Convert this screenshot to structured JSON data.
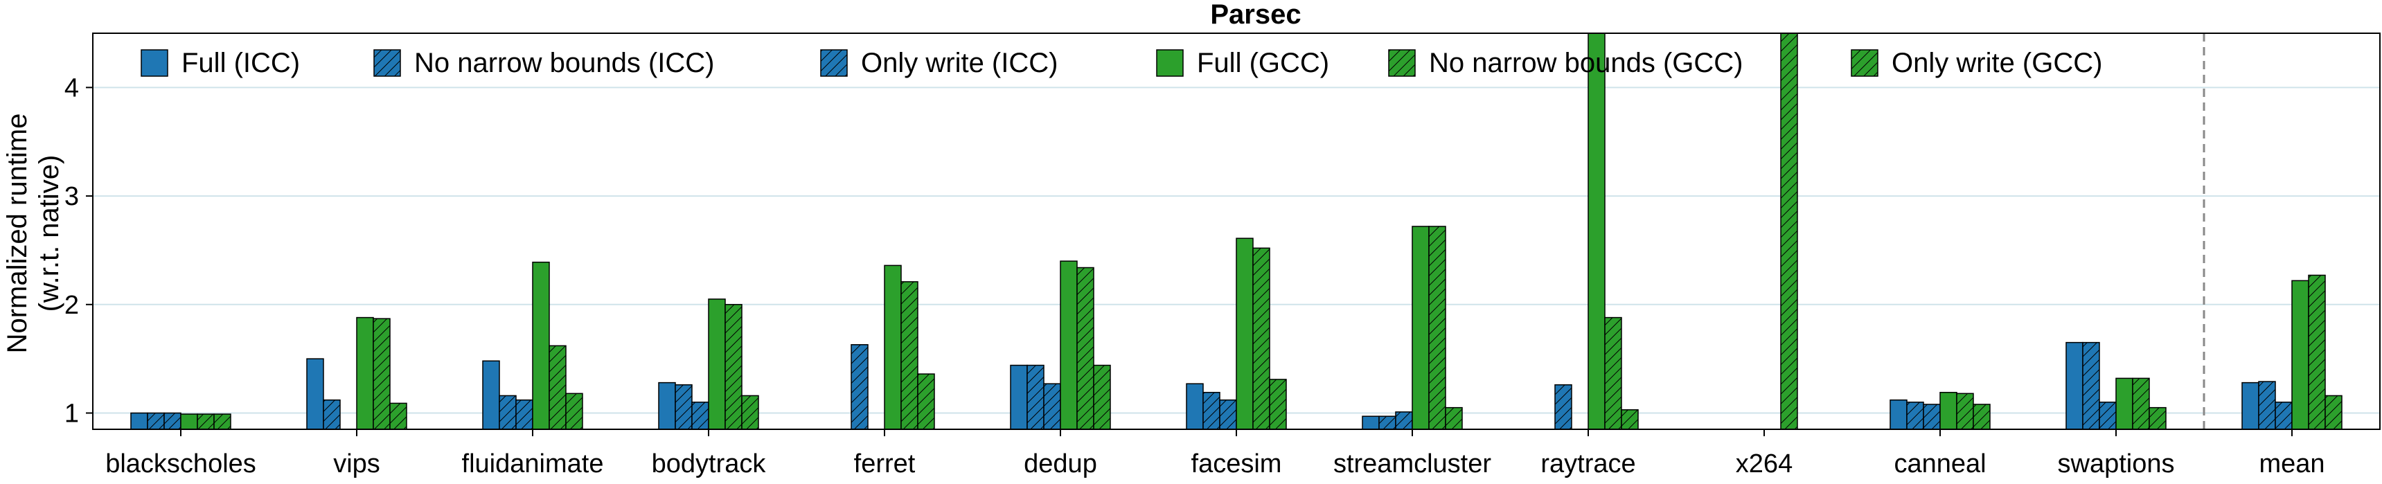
{
  "chart_data": {
    "type": "bar",
    "title": "Parsec",
    "ylabel_line1": "Normalized runtime",
    "ylabel_line2": "(w.r.t. native)",
    "ylim": [
      0.85,
      4.5
    ],
    "yticks": [
      1,
      2,
      3,
      4
    ],
    "grid": true,
    "legend_placement": "top",
    "categories": [
      "blackscholes",
      "vips",
      "fluidanimate",
      "bodytrack",
      "ferret",
      "dedup",
      "facesim",
      "streamcluster",
      "raytrace",
      "x264",
      "canneal",
      "swaptions",
      "mean"
    ],
    "separator_before": "mean",
    "colors": {
      "icc": "#1f77b4",
      "gcc": "#2ca02c",
      "edge": "#000000"
    },
    "series": [
      {
        "name": "Full (ICC)",
        "compiler": "icc",
        "pattern": "solid",
        "values": [
          1.0,
          1.5,
          1.48,
          1.28,
          null,
          1.44,
          1.27,
          0.97,
          null,
          null,
          1.12,
          1.65,
          1.28
        ]
      },
      {
        "name": "No narrow bounds (ICC)",
        "compiler": "icc",
        "pattern": "diag",
        "values": [
          1.0,
          1.12,
          1.16,
          1.26,
          1.63,
          1.44,
          1.19,
          0.97,
          1.26,
          null,
          1.1,
          1.65,
          1.29
        ]
      },
      {
        "name": "Only write (ICC)",
        "compiler": "icc",
        "pattern": "diag",
        "values": [
          1.0,
          null,
          1.12,
          1.1,
          null,
          1.27,
          1.12,
          1.01,
          null,
          null,
          1.08,
          1.1,
          1.1
        ]
      },
      {
        "name": "Full (GCC)",
        "compiler": "gcc",
        "pattern": "solid",
        "values": [
          0.99,
          1.88,
          2.39,
          2.05,
          2.36,
          2.4,
          2.61,
          2.72,
          4.5,
          null,
          1.19,
          1.32,
          2.22
        ]
      },
      {
        "name": "No narrow bounds (GCC)",
        "compiler": "gcc",
        "pattern": "diag",
        "values": [
          0.99,
          1.87,
          1.62,
          2.0,
          2.21,
          2.34,
          2.52,
          2.72,
          1.88,
          4.5,
          1.18,
          1.32,
          2.27
        ]
      },
      {
        "name": "Only write (GCC)",
        "compiler": "gcc",
        "pattern": "diag",
        "values": [
          0.99,
          1.09,
          1.18,
          1.16,
          1.36,
          1.44,
          1.31,
          1.05,
          1.03,
          null,
          1.08,
          1.05,
          1.16
        ]
      }
    ]
  }
}
